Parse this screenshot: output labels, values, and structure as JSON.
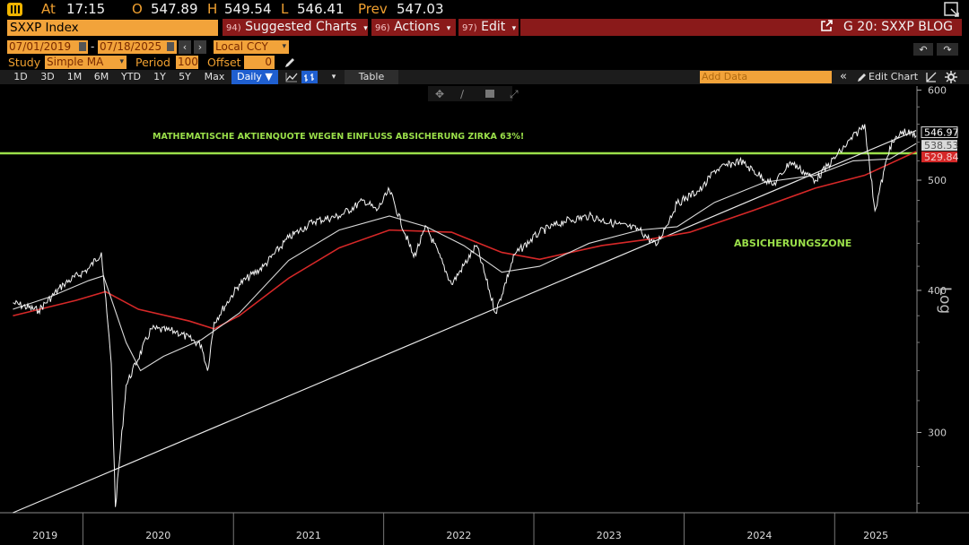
{
  "ticker": {
    "at_label": "At",
    "time": "17:15",
    "open_label": "O",
    "open": "547.89",
    "high_label": "H",
    "high": "549.54",
    "low_label": "L",
    "low": "546.41",
    "prev_label": "Prev",
    "prev": "547.03"
  },
  "security": "SXXP Index",
  "menus": {
    "suggested_num": "94)",
    "suggested": "Suggested Charts",
    "actions_num": "96)",
    "actions": "Actions",
    "edit_num": "97)",
    "edit": "Edit",
    "blog": "G 20: SXXP BLOG"
  },
  "range": {
    "start": "07/01/2019",
    "end": "07/18/2025",
    "currency": "Local CCY"
  },
  "study": {
    "label": "Study",
    "value": "Simple MA",
    "period_label": "Period",
    "period": "100",
    "offset_label": "Offset",
    "offset": "0"
  },
  "periods": [
    "1D",
    "3D",
    "1M",
    "6M",
    "YTD",
    "1Y",
    "5Y",
    "Max"
  ],
  "frequency": "Daily ▼",
  "table_label": "Table",
  "add_data_placeholder": "Add Data",
  "edit_chart": "Edit Chart",
  "annotations": {
    "line_text": "MATHEMATISCHE AKTIENQUOTE WEGEN EINFLUSS ABSICHERUNG ZIRKA 63%!",
    "zone_text": "ABSICHERUNGSZONE"
  },
  "colors": {
    "accent": "#f2a33a",
    "menu_red": "#8a1a1a",
    "ma_short": "#d9d9d9",
    "ma_long": "#d62828",
    "threshold": "#9be04a"
  },
  "chart_data": {
    "type": "line",
    "scale": "log",
    "ylim": [
      255,
      605
    ],
    "yticks": [
      300,
      400,
      500,
      600
    ],
    "ylabel": "Log",
    "x_ticks": [
      "2019",
      "2020",
      "2021",
      "2022",
      "2023",
      "2024",
      "2025"
    ],
    "last_labels": {
      "price": "546.97",
      "ma_short": "538.53",
      "ma_long": "529.84"
    },
    "threshold": 528,
    "series": [
      {
        "name": "",
        "values": [
          [
            "2019-07",
            390
          ],
          [
            "2019-09",
            384
          ],
          [
            "2019-11",
            405
          ],
          [
            "2020-01",
            418
          ],
          [
            "2020-02-15",
            432
          ],
          [
            "2020-03-10",
            345
          ],
          [
            "2020-03-20",
            258
          ],
          [
            "2020-04",
            330
          ],
          [
            "2020-06",
            370
          ],
          [
            "2020-08",
            368
          ],
          [
            "2020-10",
            358
          ],
          [
            "2020-10-30",
            340
          ],
          [
            "2020-11",
            375
          ],
          [
            "2021-01",
            405
          ],
          [
            "2021-03",
            420
          ],
          [
            "2021-05",
            445
          ],
          [
            "2021-07",
            460
          ],
          [
            "2021-09",
            465
          ],
          [
            "2021-11",
            480
          ],
          [
            "2021-12",
            470
          ],
          [
            "2022-01",
            490
          ],
          [
            "2022-03",
            428
          ],
          [
            "2022-04",
            455
          ],
          [
            "2022-06",
            405
          ],
          [
            "2022-08",
            438
          ],
          [
            "2022-09-30",
            382
          ],
          [
            "2022-11",
            430
          ],
          [
            "2023-01",
            450
          ],
          [
            "2023-03",
            460
          ],
          [
            "2023-05",
            465
          ],
          [
            "2023-07",
            458
          ],
          [
            "2023-09",
            452
          ],
          [
            "2023-10-25",
            438
          ],
          [
            "2023-12",
            477
          ],
          [
            "2024-02",
            492
          ],
          [
            "2024-03",
            510
          ],
          [
            "2024-05",
            520
          ],
          [
            "2024-08-05",
            495
          ],
          [
            "2024-09",
            519
          ],
          [
            "2024-11",
            500
          ],
          [
            "2025-01",
            530
          ],
          [
            "2025-03",
            560
          ],
          [
            "2025-04-09",
            470
          ],
          [
            "2025-05",
            535
          ],
          [
            "2025-06",
            552
          ],
          [
            "2025-07-18",
            546.97
          ]
        ]
      },
      {
        "name": "",
        "values": [
          [
            "2019-07",
            385
          ],
          [
            "2019-10",
            395
          ],
          [
            "2020-01",
            408
          ],
          [
            "2020-02-20",
            412
          ],
          [
            "2020-04",
            360
          ],
          [
            "2020-05-20",
            340
          ],
          [
            "2020-07",
            350
          ],
          [
            "2020-10",
            362
          ],
          [
            "2021-01",
            382
          ],
          [
            "2021-05",
            425
          ],
          [
            "2021-09",
            452
          ],
          [
            "2022-01",
            465
          ],
          [
            "2022-04",
            455
          ],
          [
            "2022-07",
            438
          ],
          [
            "2022-10",
            415
          ],
          [
            "2023-01",
            420
          ],
          [
            "2023-05",
            440
          ],
          [
            "2023-09",
            452
          ],
          [
            "2023-12",
            455
          ],
          [
            "2024-03",
            478
          ],
          [
            "2024-07",
            498
          ],
          [
            "2024-11",
            505
          ],
          [
            "2025-02",
            520
          ],
          [
            "2025-05",
            522
          ],
          [
            "2025-07-18",
            538.53
          ]
        ]
      },
      {
        "name": "",
        "values": [
          [
            "2019-07",
            380
          ],
          [
            "2019-12",
            392
          ],
          [
            "2020-02-25",
            399
          ],
          [
            "2020-05",
            385
          ],
          [
            "2020-09",
            376
          ],
          [
            "2020-11",
            370
          ],
          [
            "2021-01",
            380
          ],
          [
            "2021-05",
            410
          ],
          [
            "2021-09",
            436
          ],
          [
            "2022-01",
            452
          ],
          [
            "2022-06",
            450
          ],
          [
            "2022-10",
            432
          ],
          [
            "2023-01",
            426
          ],
          [
            "2023-06",
            438
          ],
          [
            "2023-10",
            444
          ],
          [
            "2024-01",
            450
          ],
          [
            "2024-06",
            470
          ],
          [
            "2024-11",
            492
          ],
          [
            "2025-03",
            505
          ],
          [
            "2025-07-18",
            529.84
          ]
        ]
      },
      {
        "name": "",
        "values": [
          [
            "2019-07-15",
            255
          ],
          [
            "2025-07-18",
            553
          ]
        ]
      }
    ]
  }
}
